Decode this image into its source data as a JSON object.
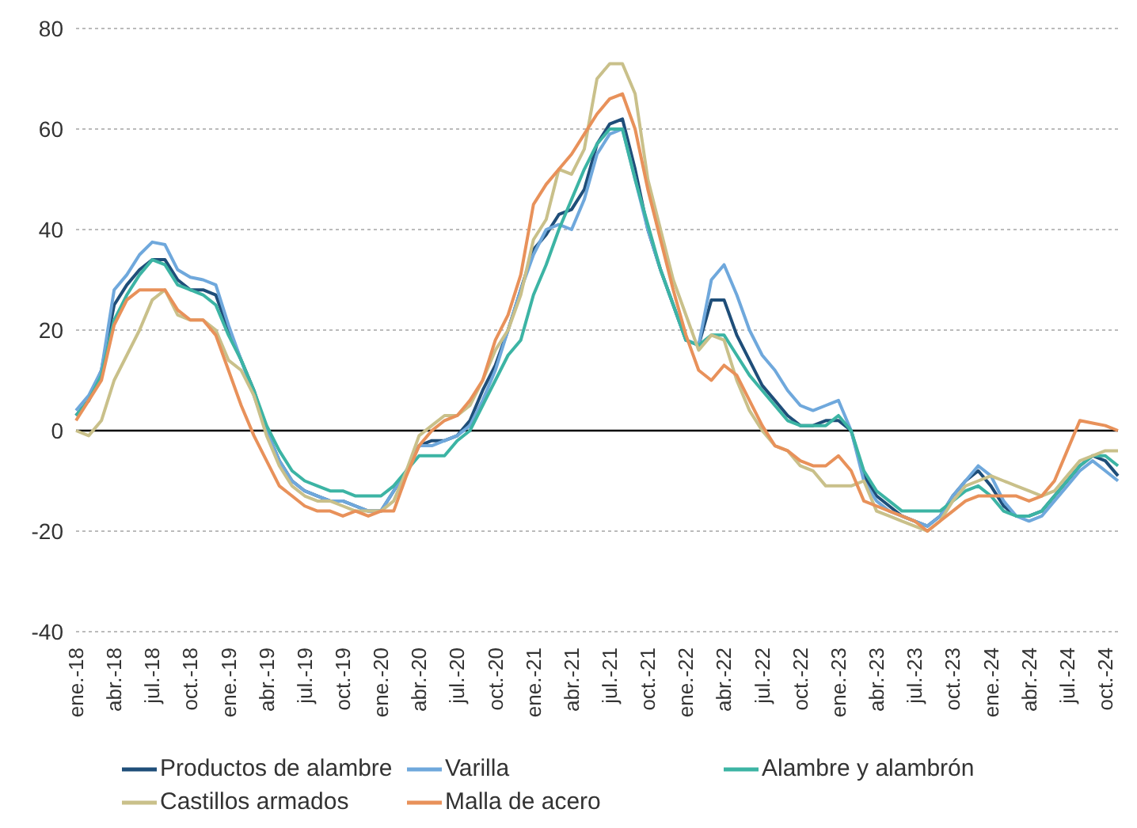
{
  "chart_data": {
    "type": "line",
    "categories": [
      "ene.-18",
      null,
      null,
      "abr.-18",
      null,
      null,
      "jul.-18",
      null,
      null,
      "oct.-18",
      null,
      null,
      "ene.-19",
      null,
      null,
      "abr.-19",
      null,
      null,
      "jul.-19",
      null,
      null,
      "oct.-19",
      null,
      null,
      "ene.-20",
      null,
      null,
      "abr.-20",
      null,
      null,
      "jul.-20",
      null,
      null,
      "oct.-20",
      null,
      null,
      "ene.-21",
      null,
      null,
      "abr.-21",
      null,
      null,
      "jul.-21",
      null,
      null,
      "oct.-21",
      null,
      null,
      "ene.-22",
      null,
      null,
      "abr.-22",
      null,
      null,
      "jul.-22",
      null,
      null,
      "oct.-22",
      null,
      null,
      "ene.-23",
      null,
      null,
      "abr.-23",
      null,
      null,
      "jul.-23",
      null,
      null,
      "oct.-23",
      null,
      null,
      "ene.-24",
      null,
      null,
      "abr.-24",
      null,
      null,
      "jul.-24",
      null,
      null,
      "oct.-24",
      null
    ],
    "series": [
      {
        "name": "Productos de alambre",
        "color": "#1f4e79",
        "values": [
          3,
          6,
          12,
          25,
          29,
          32,
          34,
          34,
          30,
          28,
          28,
          27,
          20,
          14,
          8,
          0,
          -6,
          -10,
          -12,
          -13,
          -14,
          -14,
          -15,
          -16,
          -16,
          -12,
          -8,
          -3,
          -2,
          -2,
          -1,
          2,
          8,
          13,
          20,
          28,
          36,
          39,
          43,
          44,
          48,
          57,
          61,
          62,
          52,
          40,
          32,
          25,
          18,
          17,
          26,
          26,
          19,
          14,
          9,
          6,
          3,
          1,
          1,
          2,
          2,
          0,
          -9,
          -13,
          -15,
          -17,
          -18,
          -19,
          -17,
          -13,
          -10,
          -8,
          -11,
          -15,
          -17,
          -17,
          -16,
          -13,
          -10,
          -7,
          -5,
          -6,
          -9
        ]
      },
      {
        "name": "Varilla",
        "color": "#6fa8dc",
        "values": [
          4,
          7,
          12,
          28,
          31,
          35,
          37.5,
          37,
          32,
          30.5,
          30,
          29,
          21,
          14,
          7,
          0,
          -6,
          -10,
          -12,
          -13,
          -14,
          -14,
          -15,
          -16,
          -16,
          -12,
          -8,
          -3,
          -3,
          -2,
          -1,
          1,
          6,
          12,
          20,
          28,
          35,
          40,
          41,
          40,
          46,
          55,
          59,
          60,
          50,
          40,
          32,
          25,
          18,
          17,
          30,
          33,
          27,
          20,
          15,
          12,
          8,
          5,
          4,
          5,
          6,
          0,
          -10,
          -14,
          -16,
          -17,
          -18,
          -19,
          -17,
          -13,
          -10,
          -7,
          -9,
          -14,
          -17,
          -18,
          -17,
          -14,
          -11,
          -8,
          -6,
          -8,
          -10
        ]
      },
      {
        "name": "Alambre y alambrón",
        "color": "#3cb4a4",
        "values": [
          3,
          6,
          11,
          22,
          27,
          31,
          34,
          33,
          29,
          28,
          27,
          25,
          19,
          14,
          8,
          1,
          -4,
          -8,
          -10,
          -11,
          -12,
          -12,
          -13,
          -13,
          -13,
          -11,
          -8,
          -5,
          -5,
          -5,
          -2,
          0,
          5,
          10,
          15,
          18,
          27,
          33,
          40,
          46,
          52,
          57,
          60,
          60,
          50,
          41,
          32,
          25,
          18,
          17,
          19,
          19,
          15,
          11,
          8,
          5,
          2,
          1,
          1,
          1,
          3,
          0,
          -8,
          -12,
          -14,
          -16,
          -16,
          -16,
          -16,
          -14,
          -12,
          -11,
          -13,
          -16,
          -17,
          -17,
          -16,
          -13,
          -10,
          -7,
          -5,
          -5,
          -7
        ]
      },
      {
        "name": "Castillos armados",
        "color": "#c9c08a",
        "values": [
          0,
          -1,
          2,
          10,
          15,
          20,
          26,
          28,
          23,
          22,
          22,
          20,
          14,
          12,
          7,
          -1,
          -7,
          -11,
          -13,
          -14,
          -14,
          -15,
          -16,
          -16,
          -16,
          -14,
          -8,
          -1,
          1,
          3,
          3,
          5,
          10,
          16,
          20,
          27,
          38,
          42,
          52,
          51,
          56,
          70,
          73,
          73,
          67,
          50,
          40,
          30,
          23,
          16,
          19,
          18,
          10,
          4,
          0,
          -3,
          -4,
          -7,
          -8,
          -11,
          -11,
          -11,
          -10,
          -16,
          -17,
          -18,
          -19,
          -20,
          -18,
          -14,
          -11,
          -10,
          -9,
          -10,
          -11,
          -12,
          -13,
          -12,
          -9,
          -6,
          -5,
          -4,
          -4
        ]
      },
      {
        "name": "Malla de acero",
        "color": "#e8915a",
        "values": [
          2,
          6,
          10,
          21,
          26,
          28,
          28,
          28,
          24,
          22,
          22,
          19,
          12,
          5,
          -1,
          -6,
          -11,
          -13,
          -15,
          -16,
          -16,
          -17,
          -16,
          -17,
          -16,
          -16,
          -9,
          -3,
          0,
          2,
          3,
          6,
          10,
          18,
          23,
          31,
          45,
          49,
          52,
          55,
          59,
          63,
          66,
          67,
          60,
          48,
          38,
          28,
          19,
          12,
          10,
          13,
          11,
          6,
          1,
          -3,
          -4,
          -6,
          -7,
          -7,
          -5,
          -8,
          -14,
          -15,
          -16,
          -17,
          -18,
          -20,
          -18,
          -16,
          -14,
          -13,
          -13,
          -13,
          -13,
          -14,
          -13,
          -10,
          -4,
          2,
          1.5,
          1,
          0
        ]
      }
    ],
    "ylim": [
      -40,
      80
    ],
    "yticks": [
      -40,
      -20,
      0,
      20,
      40,
      60,
      80
    ],
    "grid": "y",
    "legend": "bottom",
    "ref_lines": [
      {
        "axis": "y",
        "value": 0,
        "color": "#000000"
      }
    ]
  }
}
